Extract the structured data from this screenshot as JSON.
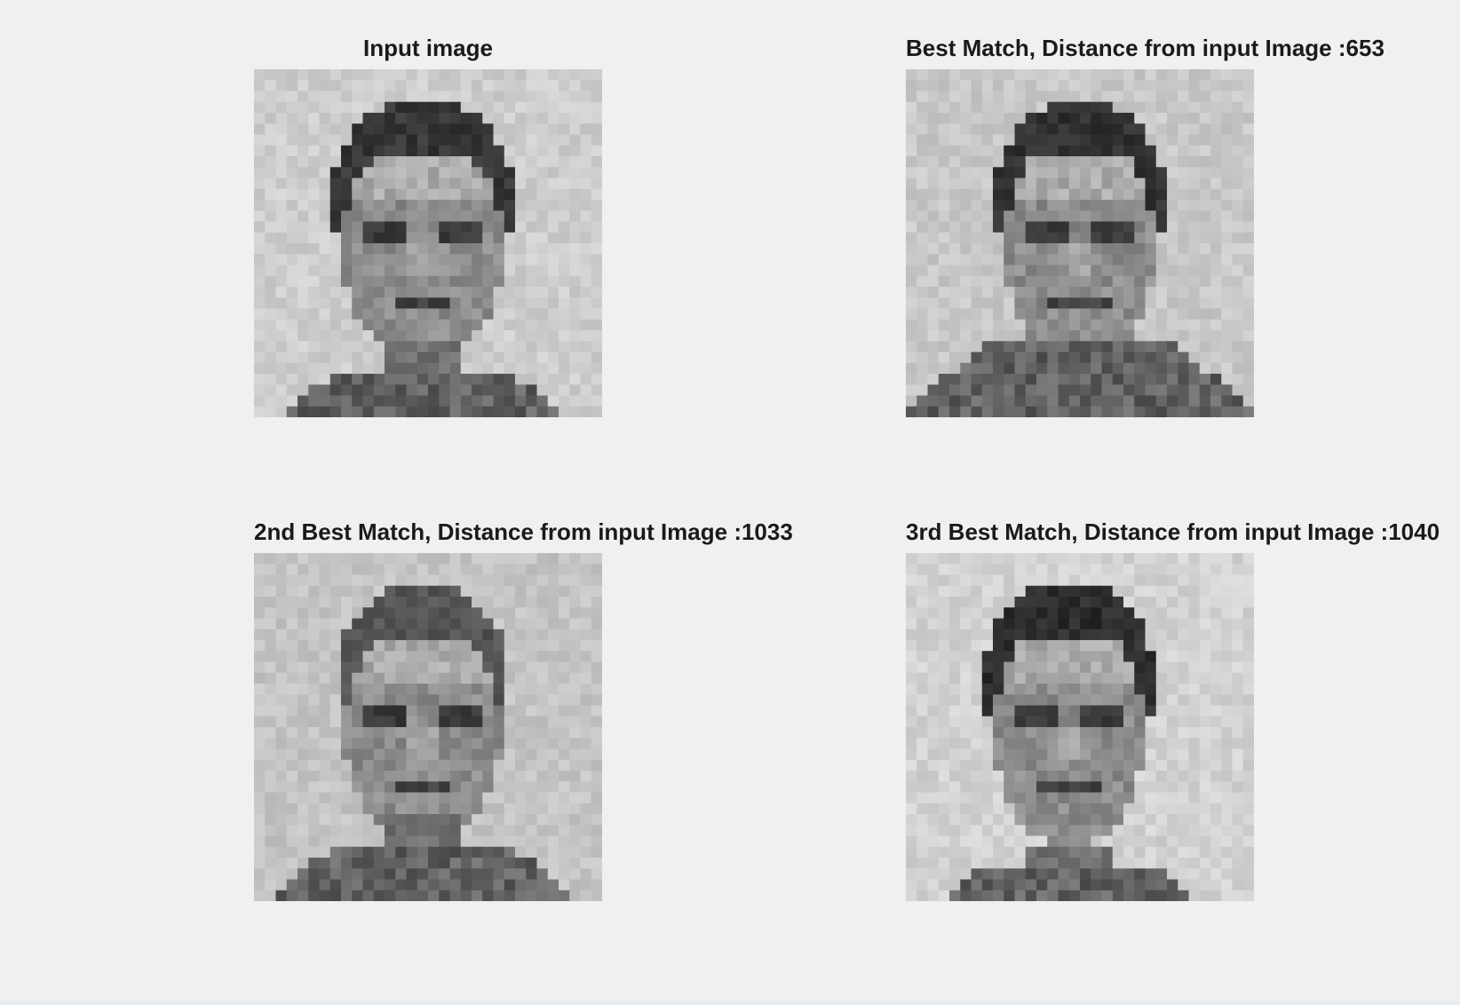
{
  "figure": {
    "background": "#f0f0f0",
    "panels": [
      {
        "id": "input",
        "title": "Input image",
        "image_icon": "face-image-icon"
      },
      {
        "id": "best",
        "title": "Best Match, Distance from input Image :653",
        "image_icon": "face-image-icon"
      },
      {
        "id": "second",
        "title": "2nd Best Match, Distance from input Image :1033",
        "image_icon": "face-image-icon"
      },
      {
        "id": "third",
        "title": "3rd Best Match, Distance from input Image :1040",
        "image_icon": "face-image-icon"
      }
    ]
  }
}
